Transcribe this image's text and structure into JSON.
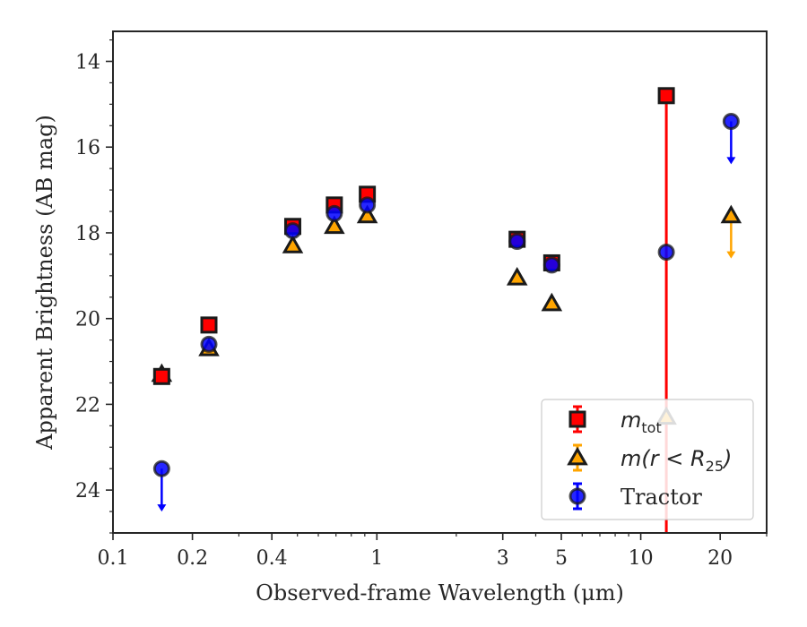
{
  "chart_data": {
    "type": "scatter",
    "xscale": "log",
    "yaxis_inverted": true,
    "xlim": [
      0.1,
      30
    ],
    "ylim": [
      25.0,
      13.3
    ],
    "xlabel": "Observed-frame Wavelength (μm)",
    "ylabel": "Apparent Brightness (AB mag)",
    "x_ticks": [
      {
        "value": 0.1,
        "label": "0.1"
      },
      {
        "value": 0.2,
        "label": "0.2"
      },
      {
        "value": 0.4,
        "label": "0.4"
      },
      {
        "value": 1,
        "label": "1"
      },
      {
        "value": 3,
        "label": "3"
      },
      {
        "value": 5,
        "label": "5"
      },
      {
        "value": 10,
        "label": "10"
      },
      {
        "value": 20,
        "label": "20"
      }
    ],
    "x_minor_ticks": [
      0.3,
      0.5,
      0.6,
      0.7,
      0.8,
      0.9,
      2,
      4,
      6,
      7,
      8,
      9,
      30
    ],
    "y_ticks": [
      {
        "value": 14,
        "label": "14"
      },
      {
        "value": 16,
        "label": "16"
      },
      {
        "value": 18,
        "label": "18"
      },
      {
        "value": 20,
        "label": "20"
      },
      {
        "value": 22,
        "label": "22"
      },
      {
        "value": 24,
        "label": "24"
      }
    ],
    "grid": false,
    "legend_position": "lower-right",
    "series": [
      {
        "name": "m_tot",
        "legend_label": {
          "base": "m",
          "sub": "tot"
        },
        "marker": "square",
        "face_color": "#ff0000",
        "edge_color": "#1a1a1a",
        "err_color": "#ff0000",
        "points": [
          {
            "x": 0.153,
            "y": 21.35
          },
          {
            "x": 0.231,
            "y": 20.15
          },
          {
            "x": 0.48,
            "y": 17.85
          },
          {
            "x": 0.69,
            "y": 17.35
          },
          {
            "x": 0.92,
            "y": 17.1
          },
          {
            "x": 3.4,
            "y": 18.15
          },
          {
            "x": 4.6,
            "y": 18.7
          },
          {
            "x": 12.5,
            "y": 14.8,
            "err_lo": 14.8,
            "err_hi": 25.0
          }
        ]
      },
      {
        "name": "m(r < R25)",
        "legend_label": {
          "base": "m(r < R",
          "sub": "25",
          "tail": ")"
        },
        "marker": "triangle",
        "face_color": "#ffa500",
        "edge_color": "#1a1a1a",
        "err_color": "#ffa500",
        "points": [
          {
            "x": 0.153,
            "y": 21.3
          },
          {
            "x": 0.231,
            "y": 20.7
          },
          {
            "x": 0.48,
            "y": 18.3
          },
          {
            "x": 0.69,
            "y": 17.85
          },
          {
            "x": 0.92,
            "y": 17.6
          },
          {
            "x": 3.4,
            "y": 19.05
          },
          {
            "x": 4.6,
            "y": 19.65
          },
          {
            "x": 12.5,
            "y": 22.3
          },
          {
            "x": 22.0,
            "y": 17.6,
            "upper_limit": true,
            "arrow_to": 18.6
          }
        ]
      },
      {
        "name": "Tractor",
        "legend_label": {
          "base": "Tractor"
        },
        "marker": "circle",
        "face_color": "#0000ff",
        "edge_color": "#1a1a1a",
        "err_color": "#0000ff",
        "points": [
          {
            "x": 0.153,
            "y": 23.5,
            "upper_limit": true,
            "arrow_to": 24.5
          },
          {
            "x": 0.231,
            "y": 20.6
          },
          {
            "x": 0.48,
            "y": 17.95
          },
          {
            "x": 0.69,
            "y": 17.55
          },
          {
            "x": 0.92,
            "y": 17.35
          },
          {
            "x": 3.4,
            "y": 18.2
          },
          {
            "x": 4.6,
            "y": 18.75
          },
          {
            "x": 12.5,
            "y": 18.45
          },
          {
            "x": 22.0,
            "y": 15.4,
            "upper_limit": true,
            "arrow_to": 16.4
          }
        ]
      }
    ]
  }
}
